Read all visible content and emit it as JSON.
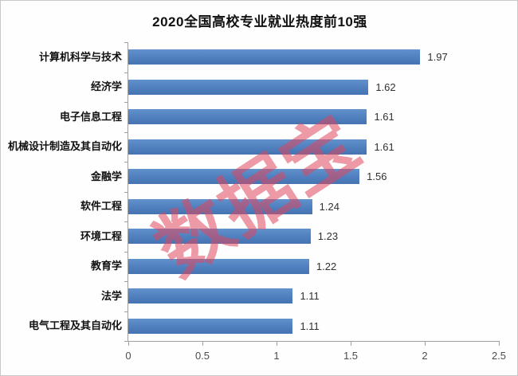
{
  "chart_data": {
    "type": "bar",
    "orientation": "horizontal",
    "title": "2020全国高校专业就业热度前10强",
    "categories": [
      "计算机科学与技术",
      "经济学",
      "电子信息工程",
      "机械设计制造及其自动化",
      "金融学",
      "软件工程",
      "环境工程",
      "教育学",
      "法学",
      "电气工程及其自动化"
    ],
    "values": [
      1.97,
      1.62,
      1.61,
      1.61,
      1.56,
      1.24,
      1.23,
      1.22,
      1.11,
      1.11
    ],
    "value_labels": [
      "1.97",
      "1.62",
      "1.61",
      "1.61",
      "1.56",
      "1.24",
      "1.23",
      "1.22",
      "1.11",
      "1.11"
    ],
    "xlabel": "",
    "ylabel": "",
    "xlim": [
      0,
      2.5
    ],
    "x_tick_values": [
      0,
      0.5,
      1,
      1.5,
      2,
      2.5
    ],
    "x_tick_labels": [
      "0",
      "0.5",
      "1",
      "1.5",
      "2",
      "2.5"
    ],
    "grid": false,
    "legend_position": "none",
    "bar_color": "#4f7fbe",
    "axis_color": "#a0a0a0"
  },
  "watermark": {
    "text": "数据宝",
    "color": "rgba(222,70,92,0.55)"
  }
}
